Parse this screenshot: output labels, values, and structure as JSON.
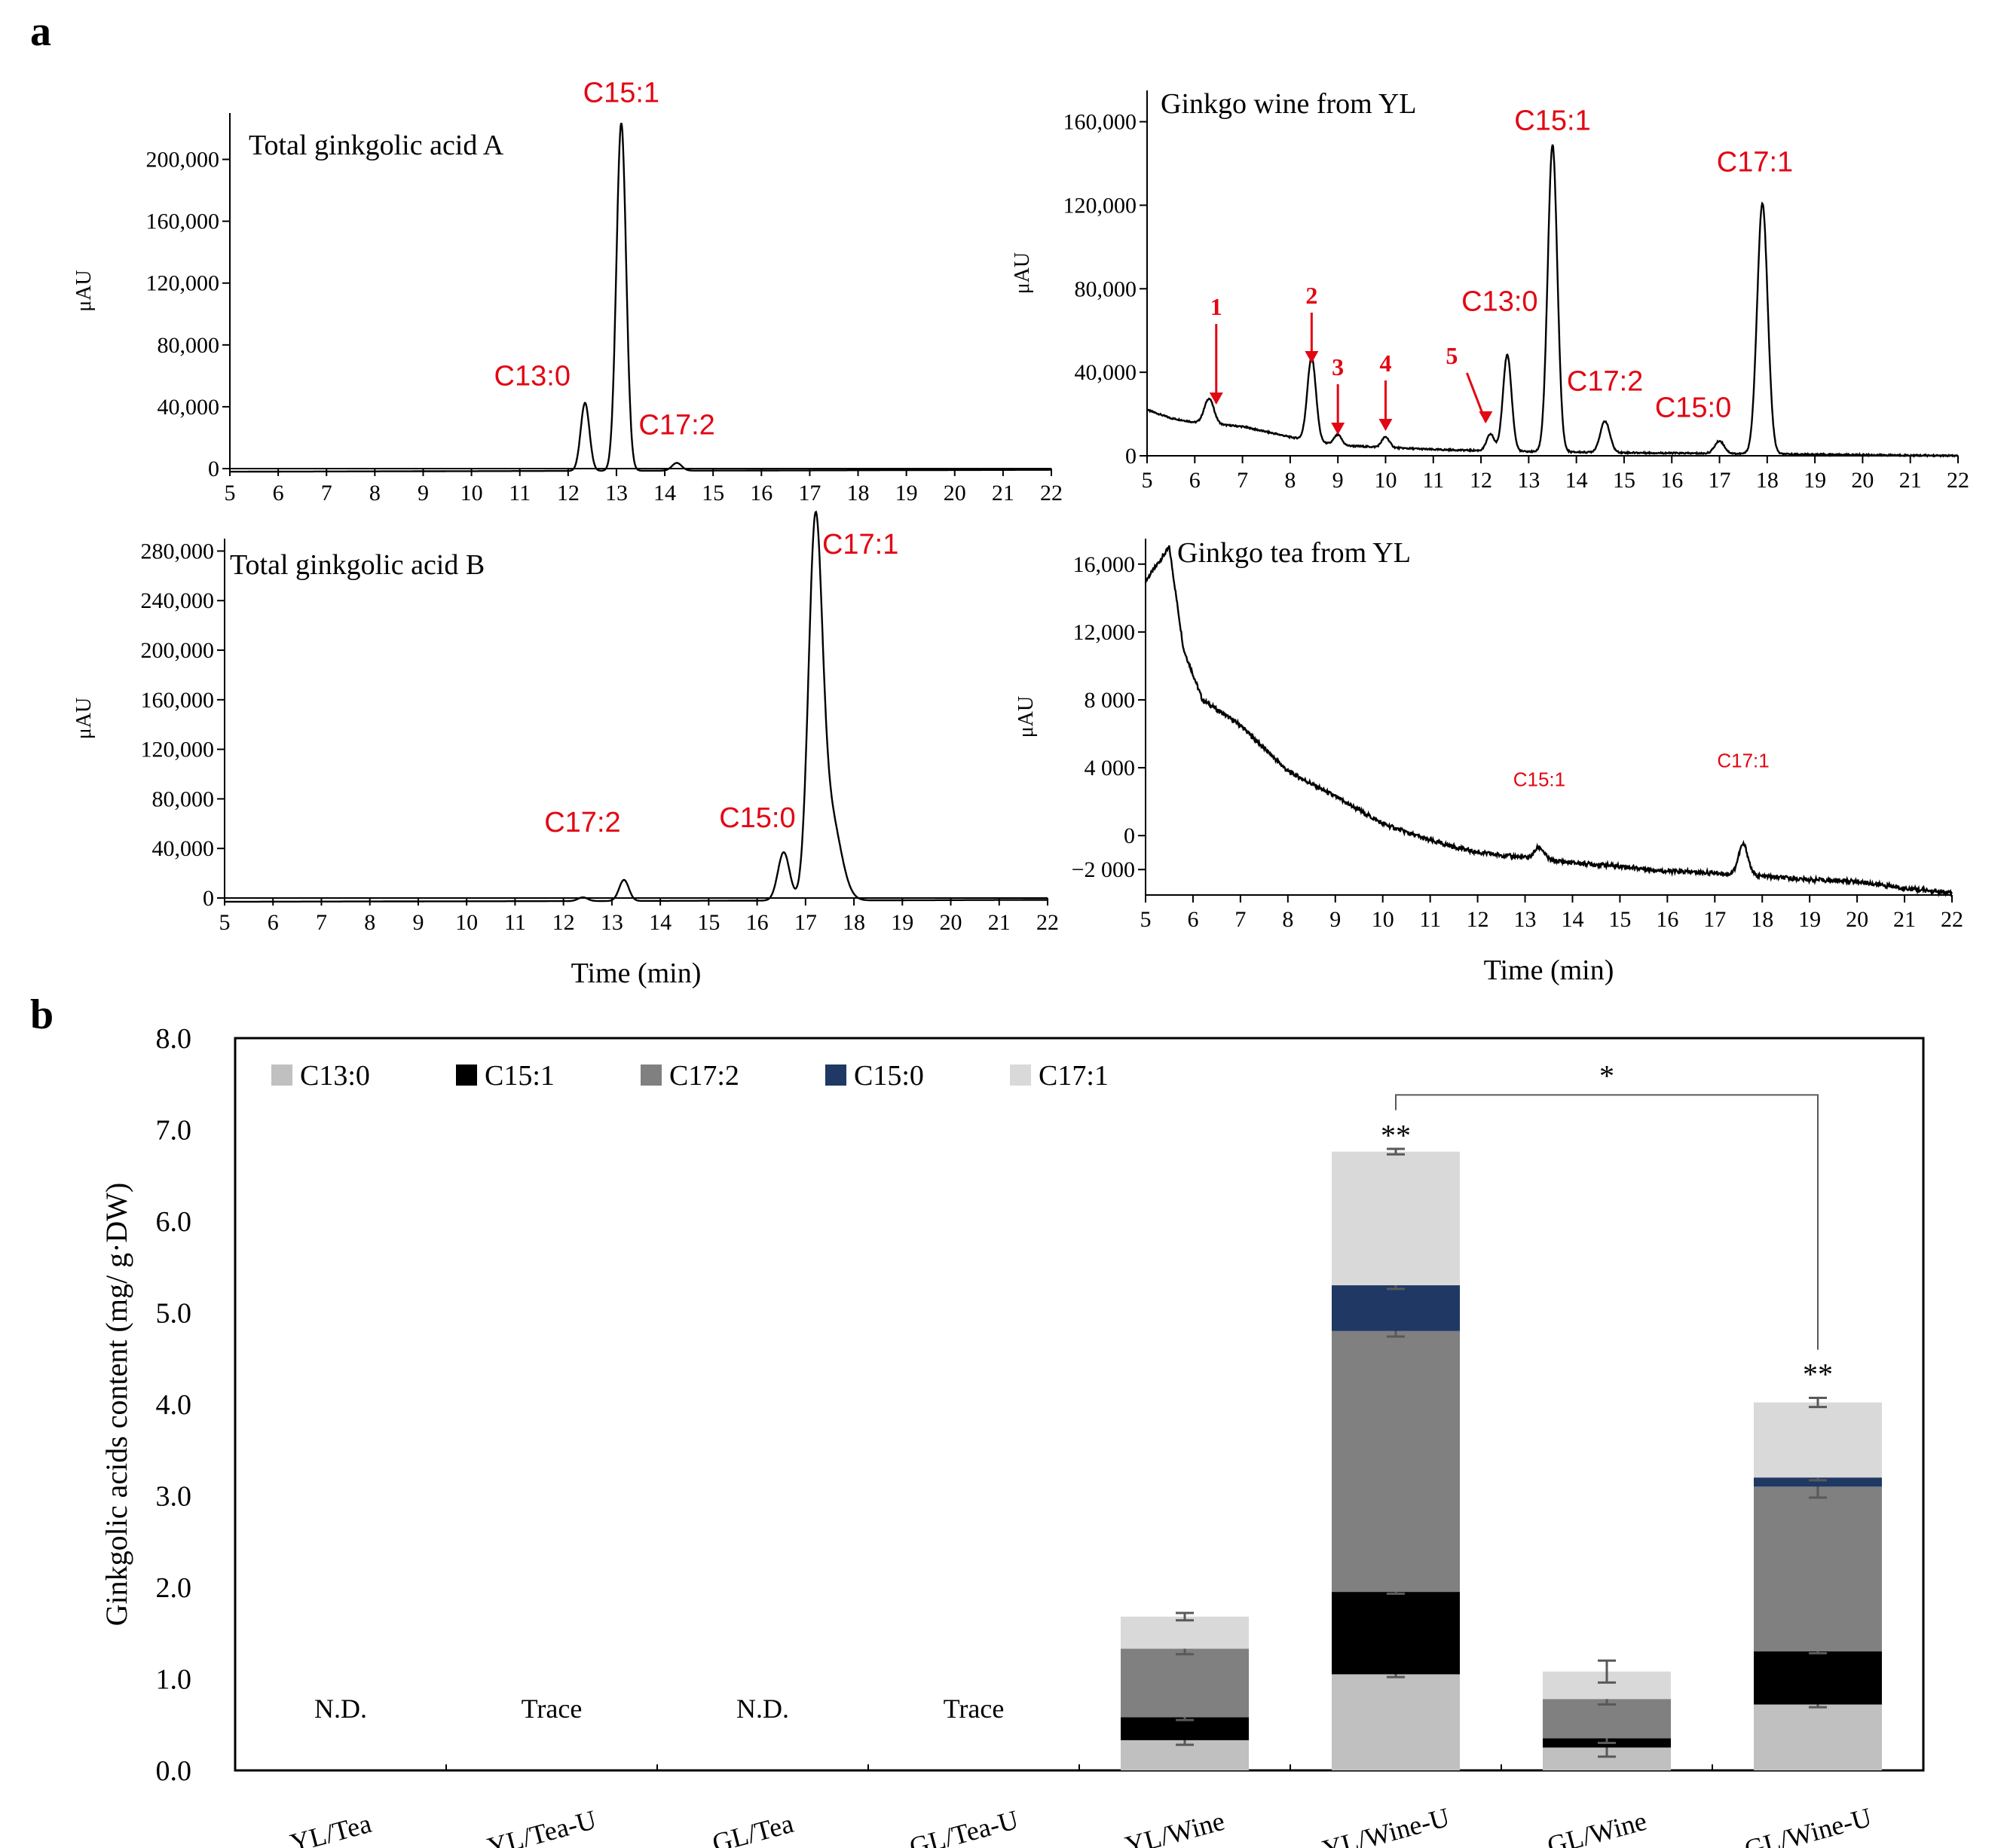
{
  "figure": {
    "panel_a_label": "a",
    "panel_b_label": "b"
  },
  "chart_data": [
    {
      "id": "chrom-ga-a",
      "type": "line",
      "title": "Total ginkgolic acid A",
      "xlabel": "",
      "ylabel": "μAU",
      "xlim": [
        5,
        22
      ],
      "ylim": [
        0,
        230000
      ],
      "xticks": [
        "5",
        "6",
        "7",
        "8",
        "9",
        "10",
        "11",
        "12",
        "13",
        "14",
        "15",
        "16",
        "17",
        "18",
        "19",
        "20",
        "21",
        "22"
      ],
      "yticks": [
        {
          "v": 0,
          "label": "0"
        },
        {
          "v": 40000,
          "label": "40,000"
        },
        {
          "v": 80000,
          "label": "80,000"
        },
        {
          "v": 120000,
          "label": "120,000"
        },
        {
          "v": 160000,
          "label": "160,000"
        },
        {
          "v": 200000,
          "label": "200,000"
        }
      ],
      "baseline": [
        [
          5,
          -2000
        ],
        [
          12,
          -1500
        ],
        [
          22,
          -800
        ]
      ],
      "peaks": [
        [
          12.35,
          44000,
          0.09
        ],
        [
          13.1,
          225000,
          0.1
        ],
        [
          14.25,
          5000,
          0.1
        ]
      ],
      "peak_labels": [
        {
          "text": "C13:0",
          "x": 12.35,
          "y": 44000
        },
        {
          "text": "C15:1",
          "x": 13.1,
          "y": 225000
        },
        {
          "text": "C17:2",
          "x": 14.25,
          "y": 5000
        }
      ]
    },
    {
      "id": "chrom-wine-yl",
      "type": "line",
      "title": "Ginkgo wine  from YL",
      "xlabel": "",
      "ylabel": "μAU",
      "xlim": [
        5,
        22
      ],
      "ylim": [
        0,
        175000
      ],
      "xticks": [
        "5",
        "6",
        "7",
        "8",
        "9",
        "10",
        "11",
        "12",
        "13",
        "14",
        "15",
        "16",
        "17",
        "18",
        "19",
        "20",
        "21",
        "22"
      ],
      "yticks": [
        {
          "v": 0,
          "label": "0"
        },
        {
          "v": 40000,
          "label": "40,000"
        },
        {
          "v": 80000,
          "label": "80,000"
        },
        {
          "v": 120000,
          "label": "120,000"
        },
        {
          "v": 160000,
          "label": "160,000"
        }
      ],
      "baseline": [
        [
          5,
          22000
        ],
        [
          5.5,
          18000
        ],
        [
          6,
          16000
        ],
        [
          7,
          14000
        ],
        [
          8,
          9000
        ],
        [
          9,
          5000
        ],
        [
          11,
          3000
        ],
        [
          13,
          2000
        ],
        [
          15,
          1500
        ],
        [
          22,
          0
        ]
      ],
      "peaks": [
        [
          6.3,
          12000,
          0.1
        ],
        [
          8.45,
          40000,
          0.09
        ],
        [
          9.0,
          5000,
          0.08
        ],
        [
          10.0,
          5000,
          0.08
        ],
        [
          12.2,
          8000,
          0.08
        ],
        [
          12.55,
          46000,
          0.09
        ],
        [
          13.5,
          147000,
          0.1
        ],
        [
          14.6,
          15000,
          0.1
        ],
        [
          17.0,
          6000,
          0.1
        ],
        [
          17.9,
          120000,
          0.11
        ]
      ],
      "peak_labels": [
        {
          "text": "C13:0",
          "x": 12.55,
          "y": 46000
        },
        {
          "text": "C15:1",
          "x": 13.5,
          "y": 147000
        },
        {
          "text": "C17:2",
          "x": 14.6,
          "y": 15000
        },
        {
          "text": "C15:0",
          "x": 17.0,
          "y": 6000
        },
        {
          "text": "C17:1",
          "x": 17.9,
          "y": 120000
        }
      ],
      "arrows": [
        {
          "label": "1",
          "x": 6.45
        },
        {
          "label": "2",
          "x": 8.45
        },
        {
          "label": "3",
          "x": 9.0
        },
        {
          "label": "4",
          "x": 10.0
        },
        {
          "label": "5",
          "x": 12.1
        }
      ]
    },
    {
      "id": "chrom-ga-b",
      "type": "line",
      "title": "Total ginkgolic acid B",
      "xlabel": "Time (min)",
      "ylabel": "μAU",
      "xlim": [
        5,
        22
      ],
      "ylim": [
        0,
        290000
      ],
      "xticks": [
        "5",
        "6",
        "7",
        "8",
        "9",
        "10",
        "11",
        "12",
        "13",
        "14",
        "15",
        "16",
        "17",
        "18",
        "19",
        "20",
        "21",
        "22"
      ],
      "yticks": [
        {
          "v": 0,
          "label": "0"
        },
        {
          "v": 40000,
          "label": "40,000"
        },
        {
          "v": 80000,
          "label": "80,000"
        },
        {
          "v": 120000,
          "label": "120,000"
        },
        {
          "v": 160000,
          "label": "160,000"
        },
        {
          "v": 200000,
          "label": "200,000"
        },
        {
          "v": 240000,
          "label": "240,000"
        },
        {
          "v": 280000,
          "label": "280,000"
        }
      ],
      "baseline": [
        [
          5,
          -3000
        ],
        [
          12,
          -2500
        ],
        [
          22,
          -1500
        ]
      ],
      "peaks": [
        [
          12.4,
          3000,
          0.1
        ],
        [
          13.25,
          17000,
          0.1
        ],
        [
          16.55,
          39000,
          0.12
        ],
        [
          17.2,
          285000,
          0.14
        ],
        [
          17.5,
          70000,
          0.22
        ]
      ],
      "peak_labels": [
        {
          "text": "C17:2",
          "x": 13.25,
          "y": 17000
        },
        {
          "text": "C15:0",
          "x": 16.55,
          "y": 39000
        },
        {
          "text": "C17:1",
          "x": 17.2,
          "y": 285000
        }
      ]
    },
    {
      "id": "chrom-tea-yl",
      "type": "line",
      "title": "Ginkgo tea  from YL",
      "xlabel": "Time (min)",
      "ylabel": "μAU",
      "xlim": [
        5,
        22
      ],
      "ylim": [
        -3500,
        17500
      ],
      "xticks": [
        "5",
        "6",
        "7",
        "8",
        "9",
        "10",
        "11",
        "12",
        "13",
        "14",
        "15",
        "16",
        "17",
        "18",
        "19",
        "20",
        "21",
        "22"
      ],
      "yticks": [
        {
          "v": -2000,
          "label": "−2 000"
        },
        {
          "v": 0,
          "label": "0"
        },
        {
          "v": 4000,
          "label": "4 000"
        },
        {
          "v": 8000,
          "label": "8 000"
        },
        {
          "v": 12000,
          "label": "12,000"
        },
        {
          "v": 16000,
          "label": "16,000"
        }
      ],
      "baseline": [
        [
          5,
          15000
        ],
        [
          5.5,
          17000
        ],
        [
          5.8,
          11000
        ],
        [
          6.2,
          8000
        ],
        [
          7,
          6500
        ],
        [
          8,
          3800
        ],
        [
          9,
          2300
        ],
        [
          10,
          700
        ],
        [
          11,
          -300
        ],
        [
          12,
          -1000
        ],
        [
          13,
          -1300
        ],
        [
          14,
          -1600
        ],
        [
          15,
          -1800
        ],
        [
          16,
          -2100
        ],
        [
          17,
          -2200
        ],
        [
          18,
          -2400
        ],
        [
          19,
          -2600
        ],
        [
          20,
          -2700
        ],
        [
          21,
          -3100
        ],
        [
          22,
          -3400
        ]
      ],
      "peaks": [
        [
          13.3,
          700,
          0.1
        ],
        [
          17.6,
          1800,
          0.1
        ]
      ],
      "peak_labels": [
        {
          "text": "C15:1",
          "x": 13.3,
          "y": 700
        },
        {
          "text": "C17:1",
          "x": 17.6,
          "y": 1800
        }
      ]
    },
    {
      "id": "stacked-bar-content",
      "type": "bar",
      "stacked": true,
      "title": "",
      "xlabel": "",
      "ylabel": "Ginkgolic  acids content (mg/ g·DW)",
      "ylim": [
        0,
        8
      ],
      "yticks": [
        "0.0",
        "1.0",
        "2.0",
        "3.0",
        "4.0",
        "5.0",
        "6.0",
        "7.0",
        "8.0"
      ],
      "legend_position": "top-left",
      "categories": [
        "YL/Tea",
        "YL/Tea-U",
        "GL/Tea",
        "GL/Tea-U",
        "YL/Wine",
        "YL/Wine-U",
        "GL/Wine",
        "GL/Wine-U"
      ],
      "series": [
        {
          "name": "C13:0",
          "color": "#c0c0c0",
          "values": [
            0,
            0,
            0,
            0,
            0.33,
            1.05,
            0.25,
            0.72
          ],
          "errors": [
            0,
            0,
            0,
            0,
            0.05,
            0.03,
            0.1,
            0.03
          ]
        },
        {
          "name": "C15:1",
          "color": "#000000",
          "values": [
            0,
            0,
            0,
            0,
            0.25,
            0.9,
            0.1,
            0.58
          ],
          "errors": [
            0,
            0,
            0,
            0,
            0.03,
            0.02,
            0.05,
            0.02
          ]
        },
        {
          "name": "C17:2",
          "color": "#808080",
          "values": [
            0,
            0,
            0,
            0,
            0.75,
            2.85,
            0.43,
            1.8
          ],
          "errors": [
            0,
            0,
            0,
            0,
            0.06,
            0.06,
            0.06,
            0.12
          ]
        },
        {
          "name": "C15:0",
          "color": "#1f3864",
          "values": [
            0,
            0,
            0,
            0,
            0,
            0.5,
            0,
            0.1
          ],
          "errors": [
            0,
            0,
            0,
            0,
            0,
            0.04,
            0,
            0.03
          ]
        },
        {
          "name": "C17:1",
          "color": "#d9d9d9",
          "values": [
            0,
            0,
            0,
            0,
            0.35,
            1.46,
            0.3,
            0.82
          ],
          "errors": [
            0,
            0,
            0,
            0,
            0.04,
            0.03,
            0.12,
            0.05
          ]
        }
      ],
      "notes": [
        "N.D.",
        "Trace",
        "N.D.",
        "Trace",
        "",
        "",
        "",
        ""
      ],
      "significance": {
        "double_star": "**",
        "single_star": "*",
        "bracket_between": [
          "YL/Wine-U",
          "GL/Wine-U"
        ]
      }
    }
  ]
}
